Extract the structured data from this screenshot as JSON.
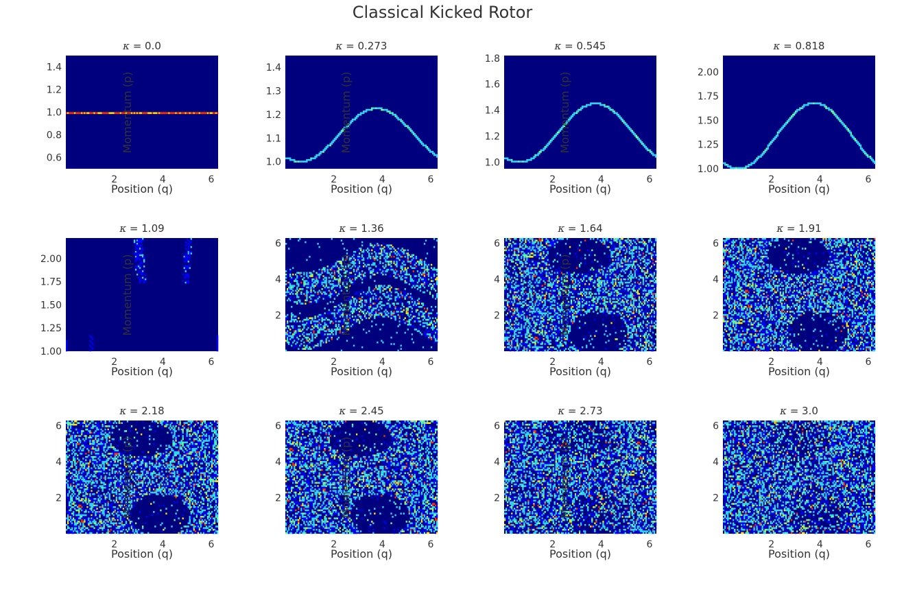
{
  "figure": {
    "title": "Classical Kicked Rotor"
  },
  "chart_data": [
    {
      "type": "heatmap",
      "title_prefix": "κ",
      "title_value": "0.0",
      "xlabel": "Position (q)",
      "ylabel": "Momentum (p)",
      "xlim": [
        0,
        6.283
      ],
      "ylim": [
        0.5,
        1.5
      ],
      "xticks": [
        2,
        4,
        6
      ],
      "yticks": [
        "0.6",
        "0.8",
        "1.0",
        "1.2",
        "1.4"
      ],
      "pattern": "line",
      "p0": 1.0,
      "amplitude": 0.0,
      "colormap": "jet"
    },
    {
      "type": "heatmap",
      "title_prefix": "κ",
      "title_value": "0.273",
      "xlabel": "Position (q)",
      "ylabel": "Momentum (p)",
      "xlim": [
        0,
        6.283
      ],
      "ylim": [
        0.97,
        1.45
      ],
      "xticks": [
        2,
        4,
        6
      ],
      "yticks": [
        "1.0",
        "1.1",
        "1.2",
        "1.3",
        "1.4"
      ],
      "pattern": "curve",
      "p0": 1.0,
      "amplitude": 0.273,
      "colormap": "jet"
    },
    {
      "type": "heatmap",
      "title_prefix": "κ",
      "title_value": "0.545",
      "xlabel": "Position (q)",
      "ylabel": "Momentum (p)",
      "xlim": [
        0,
        6.283
      ],
      "ylim": [
        0.95,
        1.82
      ],
      "xticks": [
        2,
        4,
        6
      ],
      "yticks": [
        "1.0",
        "1.2",
        "1.4",
        "1.6",
        "1.8"
      ],
      "pattern": "curve",
      "p0": 1.0,
      "amplitude": 0.545,
      "colormap": "jet"
    },
    {
      "type": "heatmap",
      "title_prefix": "κ",
      "title_value": "0.818",
      "xlabel": "Position (q)",
      "ylabel": "Momentum (p)",
      "xlim": [
        0,
        6.283
      ],
      "ylim": [
        1.0,
        2.17
      ],
      "xticks": [
        2,
        4,
        6
      ],
      "yticks": [
        "1.00",
        "1.25",
        "1.50",
        "1.75",
        "2.00"
      ],
      "pattern": "curve",
      "p0": 1.0,
      "amplitude": 0.818,
      "colormap": "jet"
    },
    {
      "type": "heatmap",
      "title_prefix": "κ",
      "title_value": "1.09",
      "xlabel": "Position (q)",
      "ylabel": "Momentum (p)",
      "xlim": [
        0,
        6.283
      ],
      "ylim": [
        1.0,
        2.22
      ],
      "xticks": [
        2,
        4,
        6
      ],
      "yticks": [
        "1.00",
        "1.25",
        "1.50",
        "1.75",
        "2.00"
      ],
      "pattern": "sparse",
      "p0": 1.0,
      "amplitude": 1.09,
      "colormap": "jet"
    },
    {
      "type": "heatmap",
      "title_prefix": "κ",
      "title_value": "1.36",
      "xlabel": "Position (q)",
      "ylabel": "Momentum (p)",
      "xlim": [
        0,
        6.283
      ],
      "ylim": [
        0,
        6.283
      ],
      "xticks": [
        2,
        4,
        6
      ],
      "yticks": [
        "2",
        "4",
        "6"
      ],
      "pattern": "bands",
      "p0": 1.0,
      "amplitude": 1.36,
      "colormap": "jet"
    },
    {
      "type": "heatmap",
      "title_prefix": "κ",
      "title_value": "1.64",
      "xlabel": "Position (q)",
      "ylabel": "Momentum (p)",
      "xlim": [
        0,
        6.283
      ],
      "ylim": [
        0,
        6.283
      ],
      "xticks": [
        2,
        4,
        6
      ],
      "yticks": [
        "2",
        "4",
        "6"
      ],
      "pattern": "chaos",
      "p0": 1.0,
      "amplitude": 1.64,
      "colormap": "jet"
    },
    {
      "type": "heatmap",
      "title_prefix": "κ",
      "title_value": "1.91",
      "xlabel": "Position (q)",
      "ylabel": "Momentum (p)",
      "xlim": [
        0,
        6.283
      ],
      "ylim": [
        0,
        6.283
      ],
      "xticks": [
        2,
        4,
        6
      ],
      "yticks": [
        "2",
        "4",
        "6"
      ],
      "pattern": "chaos",
      "p0": 1.0,
      "amplitude": 1.91,
      "colormap": "jet"
    },
    {
      "type": "heatmap",
      "title_prefix": "κ",
      "title_value": "2.18",
      "xlabel": "Position (q)",
      "ylabel": "Momentum (p)",
      "xlim": [
        0,
        6.283
      ],
      "ylim": [
        0,
        6.283
      ],
      "xticks": [
        2,
        4,
        6
      ],
      "yticks": [
        "2",
        "4",
        "6"
      ],
      "pattern": "chaos",
      "p0": 1.0,
      "amplitude": 2.18,
      "colormap": "jet"
    },
    {
      "type": "heatmap",
      "title_prefix": "κ",
      "title_value": "2.45",
      "xlabel": "Position (q)",
      "ylabel": "Momentum (p)",
      "xlim": [
        0,
        6.283
      ],
      "ylim": [
        0,
        6.283
      ],
      "xticks": [
        2,
        4,
        6
      ],
      "yticks": [
        "2",
        "4",
        "6"
      ],
      "pattern": "chaos",
      "p0": 1.0,
      "amplitude": 2.45,
      "colormap": "jet"
    },
    {
      "type": "heatmap",
      "title_prefix": "κ",
      "title_value": "2.73",
      "xlabel": "Position (q)",
      "ylabel": "Momentum (p)",
      "xlim": [
        0,
        6.283
      ],
      "ylim": [
        0,
        6.283
      ],
      "xticks": [
        2,
        4,
        6
      ],
      "yticks": [
        "2",
        "4",
        "6"
      ],
      "pattern": "chaos",
      "p0": 1.0,
      "amplitude": 2.73,
      "colormap": "jet"
    },
    {
      "type": "heatmap",
      "title_prefix": "κ",
      "title_value": "3.0",
      "xlabel": "Position (q)",
      "ylabel": "Momentum (p)",
      "xlim": [
        0,
        6.283
      ],
      "ylim": [
        0,
        6.283
      ],
      "xticks": [
        2,
        4,
        6
      ],
      "yticks": [
        "2",
        "4",
        "6"
      ],
      "pattern": "chaos",
      "p0": 1.0,
      "amplitude": 3.0,
      "colormap": "jet"
    }
  ],
  "colors": {
    "background": "#00007f",
    "low": "#0000ff",
    "cyan": "#2fd4f0",
    "mid": "#6cff8c",
    "yellow": "#ffe600",
    "high": "#ff3000"
  }
}
